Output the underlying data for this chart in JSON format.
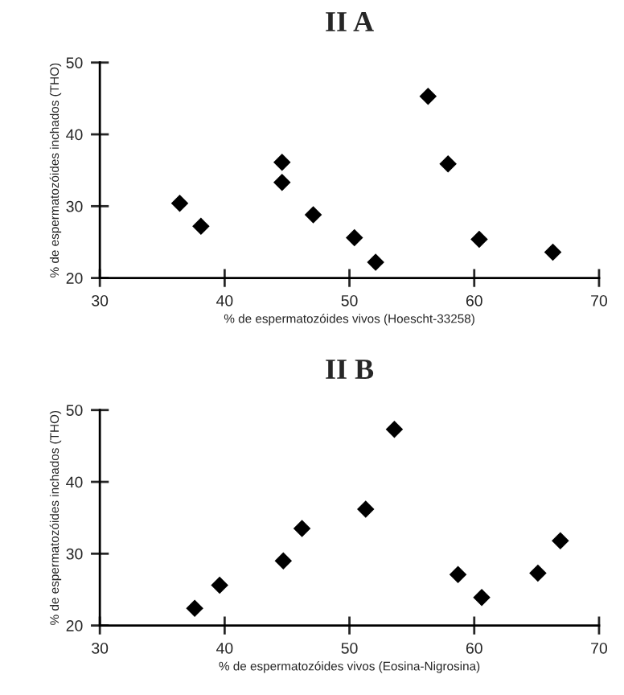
{
  "chart_data": [
    {
      "type": "scatter",
      "title": "II A",
      "xlabel": "% de espermatozóides vivos (Hoescht-33258)",
      "ylabel": "% de espermatozóides inchados (THO)",
      "marker": "diamond",
      "grid": false,
      "xlim": [
        30,
        70
      ],
      "ylim": [
        20,
        50
      ],
      "xticks": [
        30,
        40,
        50,
        60,
        70
      ],
      "yticks": [
        20,
        30,
        40,
        50
      ],
      "series": [
        {
          "color": "#000000",
          "x": [
            36.4,
            38.1,
            44.6,
            44.6,
            47.1,
            50.4,
            52.1,
            56.3,
            57.9,
            60.4,
            66.3
          ],
          "values": [
            30.4,
            27.2,
            36.1,
            33.3,
            28.8,
            25.6,
            22.2,
            45.3,
            35.9,
            25.4,
            23.6
          ]
        }
      ]
    },
    {
      "type": "scatter",
      "title": "II B",
      "xlabel": "% de espermatozóides vivos (Eosina-Nigrosina)",
      "ylabel": "% de espermatozóides inchados (THO)",
      "marker": "diamond",
      "grid": false,
      "xlim": [
        30,
        70
      ],
      "ylim": [
        20,
        50
      ],
      "xticks": [
        30,
        40,
        50,
        60,
        70
      ],
      "yticks": [
        20,
        30,
        40,
        50
      ],
      "series": [
        {
          "color": "#000000",
          "x": [
            37.6,
            39.6,
            44.7,
            46.2,
            51.3,
            53.6,
            58.7,
            60.6,
            65.1,
            66.9
          ],
          "values": [
            22.4,
            25.6,
            29.0,
            33.5,
            36.2,
            47.3,
            27.1,
            23.9,
            27.3,
            31.8
          ]
        }
      ]
    }
  ]
}
